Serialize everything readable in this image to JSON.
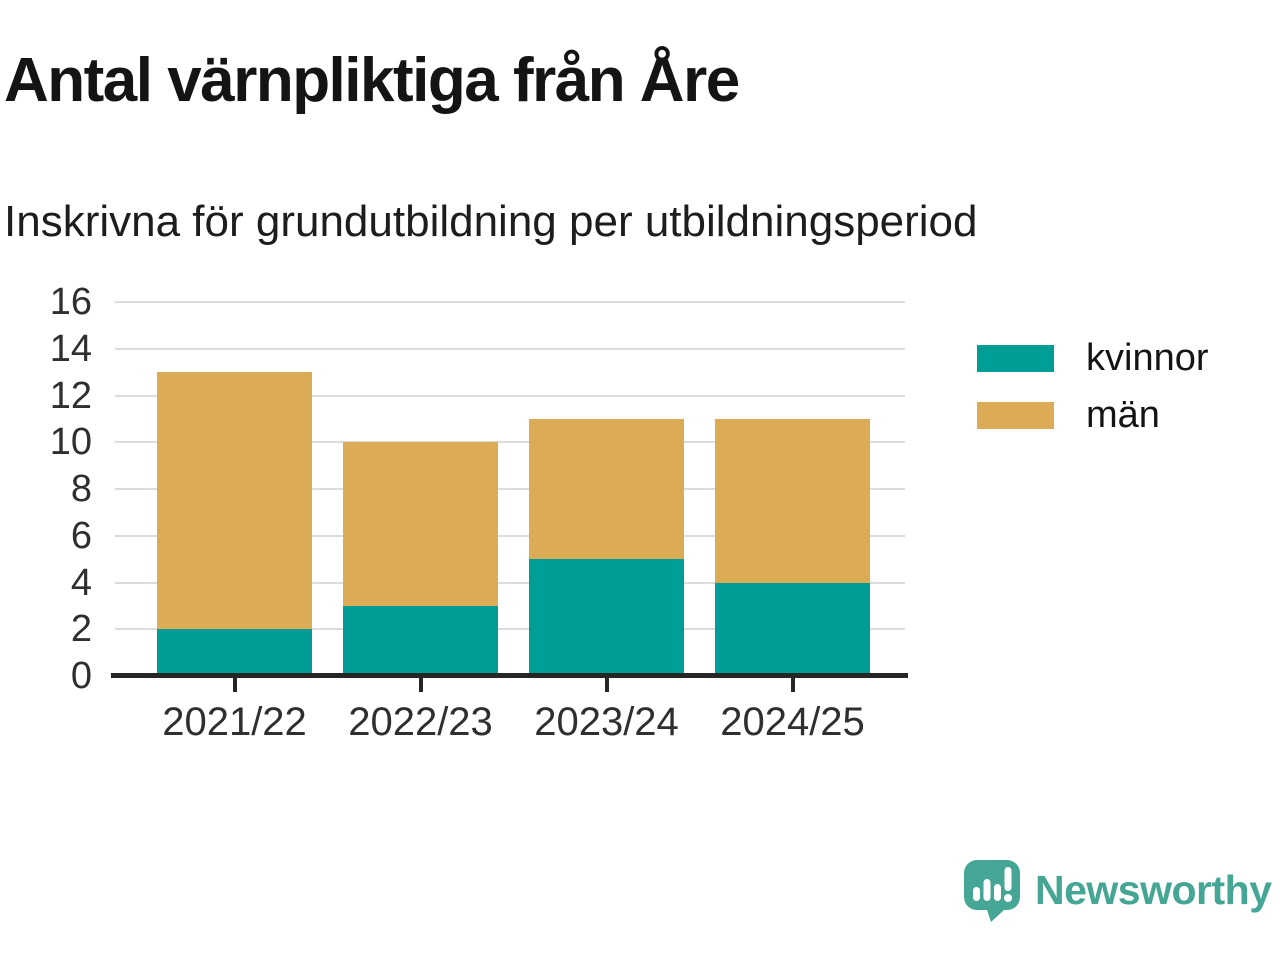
{
  "chart": {
    "title": "Antal värnpliktiga från Åre",
    "subtitle": "Inskrivna för grundutbildning per utbildningsperiod"
  },
  "chart_data": {
    "type": "bar",
    "stacked": true,
    "title": "Antal värnpliktiga från Åre",
    "subtitle": "Inskrivna för grundutbildning per utbildningsperiod",
    "categories": [
      "2021/22",
      "2022/23",
      "2023/24",
      "2024/25"
    ],
    "series": [
      {
        "name": "kvinnor",
        "color": "#009c96",
        "values": [
          2,
          3,
          5,
          4
        ]
      },
      {
        "name": "män",
        "color": "#dcab55",
        "values": [
          11,
          7,
          6,
          7
        ]
      }
    ],
    "totals": [
      13,
      10,
      11,
      11
    ],
    "xlabel": "",
    "ylabel": "",
    "ylim": [
      0,
      16
    ],
    "ytick_step": 2,
    "yticks": [
      0,
      2,
      4,
      6,
      8,
      10,
      12,
      14,
      16
    ],
    "grid": true,
    "legend_position": "right"
  },
  "brand": {
    "name": "Newsworthy",
    "color": "#46a695"
  }
}
